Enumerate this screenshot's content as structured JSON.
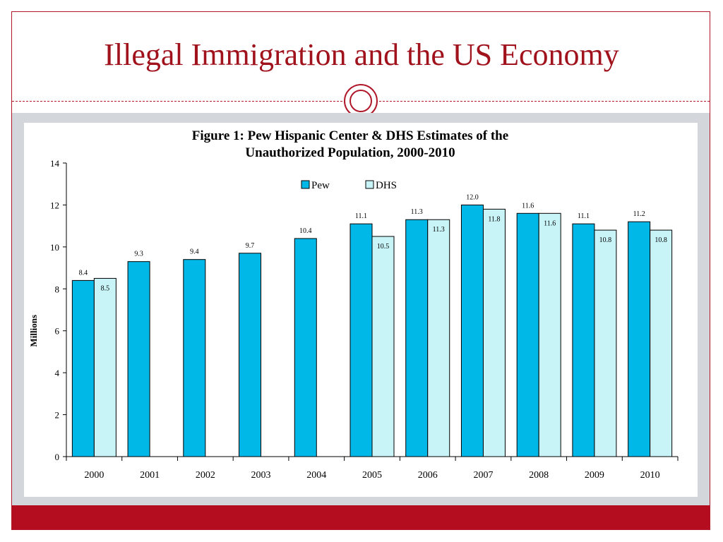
{
  "slide": {
    "title": "Illegal Immigration and the US Economy"
  },
  "colors": {
    "accent": "#b30d1f",
    "pew": "#00b8e8",
    "dhs": "#c8f4f8"
  },
  "chart_data": {
    "type": "bar",
    "title_lines": [
      "Figure 1: Pew Hispanic Center & DHS Estimates of the",
      "Unauthorized Population, 2000-2010"
    ],
    "xlabel": "",
    "ylabel": "Millions",
    "ylim": [
      0,
      14
    ],
    "yticks": [
      0,
      2,
      4,
      6,
      8,
      10,
      12,
      14
    ],
    "grid": false,
    "legend_position": "top-center",
    "categories": [
      "2000",
      "2001",
      "2002",
      "2003",
      "2004",
      "2005",
      "2006",
      "2007",
      "2008",
      "2009",
      "2010"
    ],
    "series": [
      {
        "name": "Pew",
        "values": [
          8.4,
          9.3,
          9.4,
          9.7,
          10.4,
          11.1,
          11.3,
          12.0,
          11.6,
          11.1,
          11.2
        ],
        "labels": [
          "8.4",
          "9.3",
          "9.4",
          "9.7",
          "10.4",
          "11.1",
          "11.3",
          "12.0",
          "11.6",
          "11.1",
          "11.2"
        ]
      },
      {
        "name": "DHS",
        "values": [
          8.5,
          null,
          null,
          null,
          null,
          10.5,
          11.3,
          11.8,
          11.6,
          10.8,
          10.8
        ],
        "labels": [
          "8.5",
          null,
          null,
          null,
          null,
          "10.5",
          "11.3",
          "11.8",
          "11.6",
          "10.8",
          "10.8"
        ]
      }
    ]
  }
}
